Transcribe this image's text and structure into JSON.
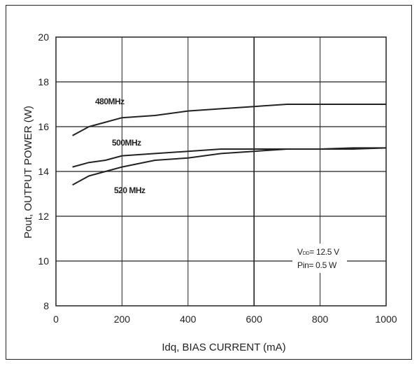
{
  "chart_data": {
    "type": "line",
    "xlabel": "Idq, BIAS CURRENT  (mA)",
    "ylabel": "Pout, OUTPUT POWER  (W)",
    "xlim": [
      0,
      1000
    ],
    "ylim": [
      8,
      20
    ],
    "xticks": [
      0,
      200,
      400,
      600,
      800,
      1000
    ],
    "yticks": [
      8,
      10,
      12,
      14,
      16,
      18,
      20
    ],
    "grid": true,
    "series": [
      {
        "name": "480MHz",
        "x": [
          50,
          100,
          150,
          200,
          300,
          400,
          500,
          600,
          700,
          800,
          900,
          1000
        ],
        "y": [
          15.6,
          16.0,
          16.2,
          16.4,
          16.5,
          16.7,
          16.8,
          16.9,
          17.0,
          17.0,
          17.0,
          17.0
        ]
      },
      {
        "name": "500MHz",
        "x": [
          50,
          100,
          150,
          200,
          300,
          400,
          500,
          600,
          700,
          800,
          900,
          1000
        ],
        "y": [
          14.2,
          14.4,
          14.5,
          14.7,
          14.8,
          14.9,
          15.0,
          15.0,
          15.0,
          15.0,
          15.0,
          15.05
        ]
      },
      {
        "name": "520 MHz",
        "x": [
          50,
          100,
          150,
          200,
          300,
          400,
          500,
          600,
          700,
          800,
          900,
          1000
        ],
        "y": [
          13.4,
          13.8,
          14.0,
          14.2,
          14.5,
          14.6,
          14.8,
          14.9,
          15.0,
          15.0,
          15.05,
          15.05
        ]
      }
    ],
    "annotations": {
      "vdd_main": "V",
      "vdd_sub": "DD",
      "vdd_value": "= 12.5 V",
      "pin": "Pin= 0.5 W"
    }
  }
}
